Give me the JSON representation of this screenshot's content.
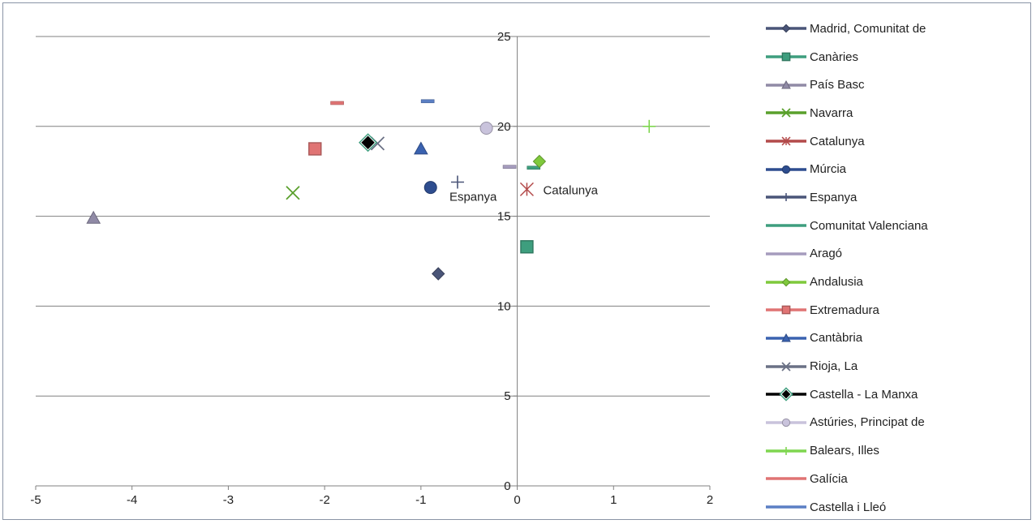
{
  "chart_data": {
    "type": "scatter",
    "title": "",
    "xlabel": "",
    "ylabel": "",
    "xlim": [
      -5,
      2
    ],
    "ylim": [
      0,
      25
    ],
    "x_ticks": [
      "-5",
      "-4",
      "-3",
      "-2",
      "-1",
      "0",
      "1",
      "2"
    ],
    "y_ticks": [
      "0",
      "5",
      "10",
      "15",
      "20",
      "25"
    ],
    "grid": "horizontal",
    "legend_position": "right",
    "series": [
      {
        "name": "Madrid, Comunitat de",
        "x": -0.82,
        "y": 11.8,
        "marker": "diamond",
        "color": "#4a5578"
      },
      {
        "name": "Canàries",
        "x": 0.1,
        "y": 13.3,
        "marker": "square",
        "color": "#3e9e7e"
      },
      {
        "name": "País Basc",
        "x": -4.4,
        "y": 14.9,
        "marker": "triangle",
        "color": "#908aa6"
      },
      {
        "name": "Navarra",
        "x": -2.33,
        "y": 16.3,
        "marker": "x",
        "color": "#5aa02c"
      },
      {
        "name": "Catalunya",
        "x": 0.1,
        "y": 16.5,
        "marker": "asterisk",
        "color": "#b34a4a"
      },
      {
        "name": "Múrcia",
        "x": -0.9,
        "y": 16.6,
        "marker": "circle",
        "color": "#2e4d8f"
      },
      {
        "name": "Espanya",
        "x": -0.62,
        "y": 16.9,
        "marker": "plus",
        "color": "#4a5578"
      },
      {
        "name": "Comunitat Valenciana",
        "x": 0.17,
        "y": 17.7,
        "marker": "dash",
        "color": "#3e9e7e"
      },
      {
        "name": "Aragó",
        "x": -0.08,
        "y": 17.75,
        "marker": "dash",
        "color": "#a59cbd"
      },
      {
        "name": "Andalusia",
        "x": 0.23,
        "y": 18.05,
        "marker": "diamond",
        "color": "#7fc93c"
      },
      {
        "name": "Extremadura",
        "x": -2.1,
        "y": 18.75,
        "marker": "square",
        "color": "#e07474"
      },
      {
        "name": "Cantàbria",
        "x": -1.0,
        "y": 18.75,
        "marker": "triangle",
        "color": "#3a62b0"
      },
      {
        "name": "Rioja, La",
        "x": -1.45,
        "y": 19.05,
        "marker": "x",
        "color": "#6b7185"
      },
      {
        "name": "Castella - La Manxa",
        "x": -1.55,
        "y": 19.1,
        "marker": "diamond",
        "color": "#000000"
      },
      {
        "name": "Astúries, Principat de",
        "x": -0.32,
        "y": 19.9,
        "marker": "circle",
        "color": "#c9c3dc"
      },
      {
        "name": "Balears, Illes",
        "x": 1.37,
        "y": 20.0,
        "marker": "plus",
        "color": "#7fd650"
      },
      {
        "name": "Galícia",
        "x": -1.87,
        "y": 21.3,
        "marker": "dash",
        "color": "#e07474"
      },
      {
        "name": "Castella i Lleó",
        "x": -0.93,
        "y": 21.4,
        "marker": "dash",
        "color": "#5b7fc4"
      }
    ],
    "annotations": [
      {
        "text": "Espanya",
        "x": -0.62,
        "y": 16.9
      },
      {
        "text": "Catalunya",
        "x": 0.1,
        "y": 16.5
      }
    ]
  }
}
